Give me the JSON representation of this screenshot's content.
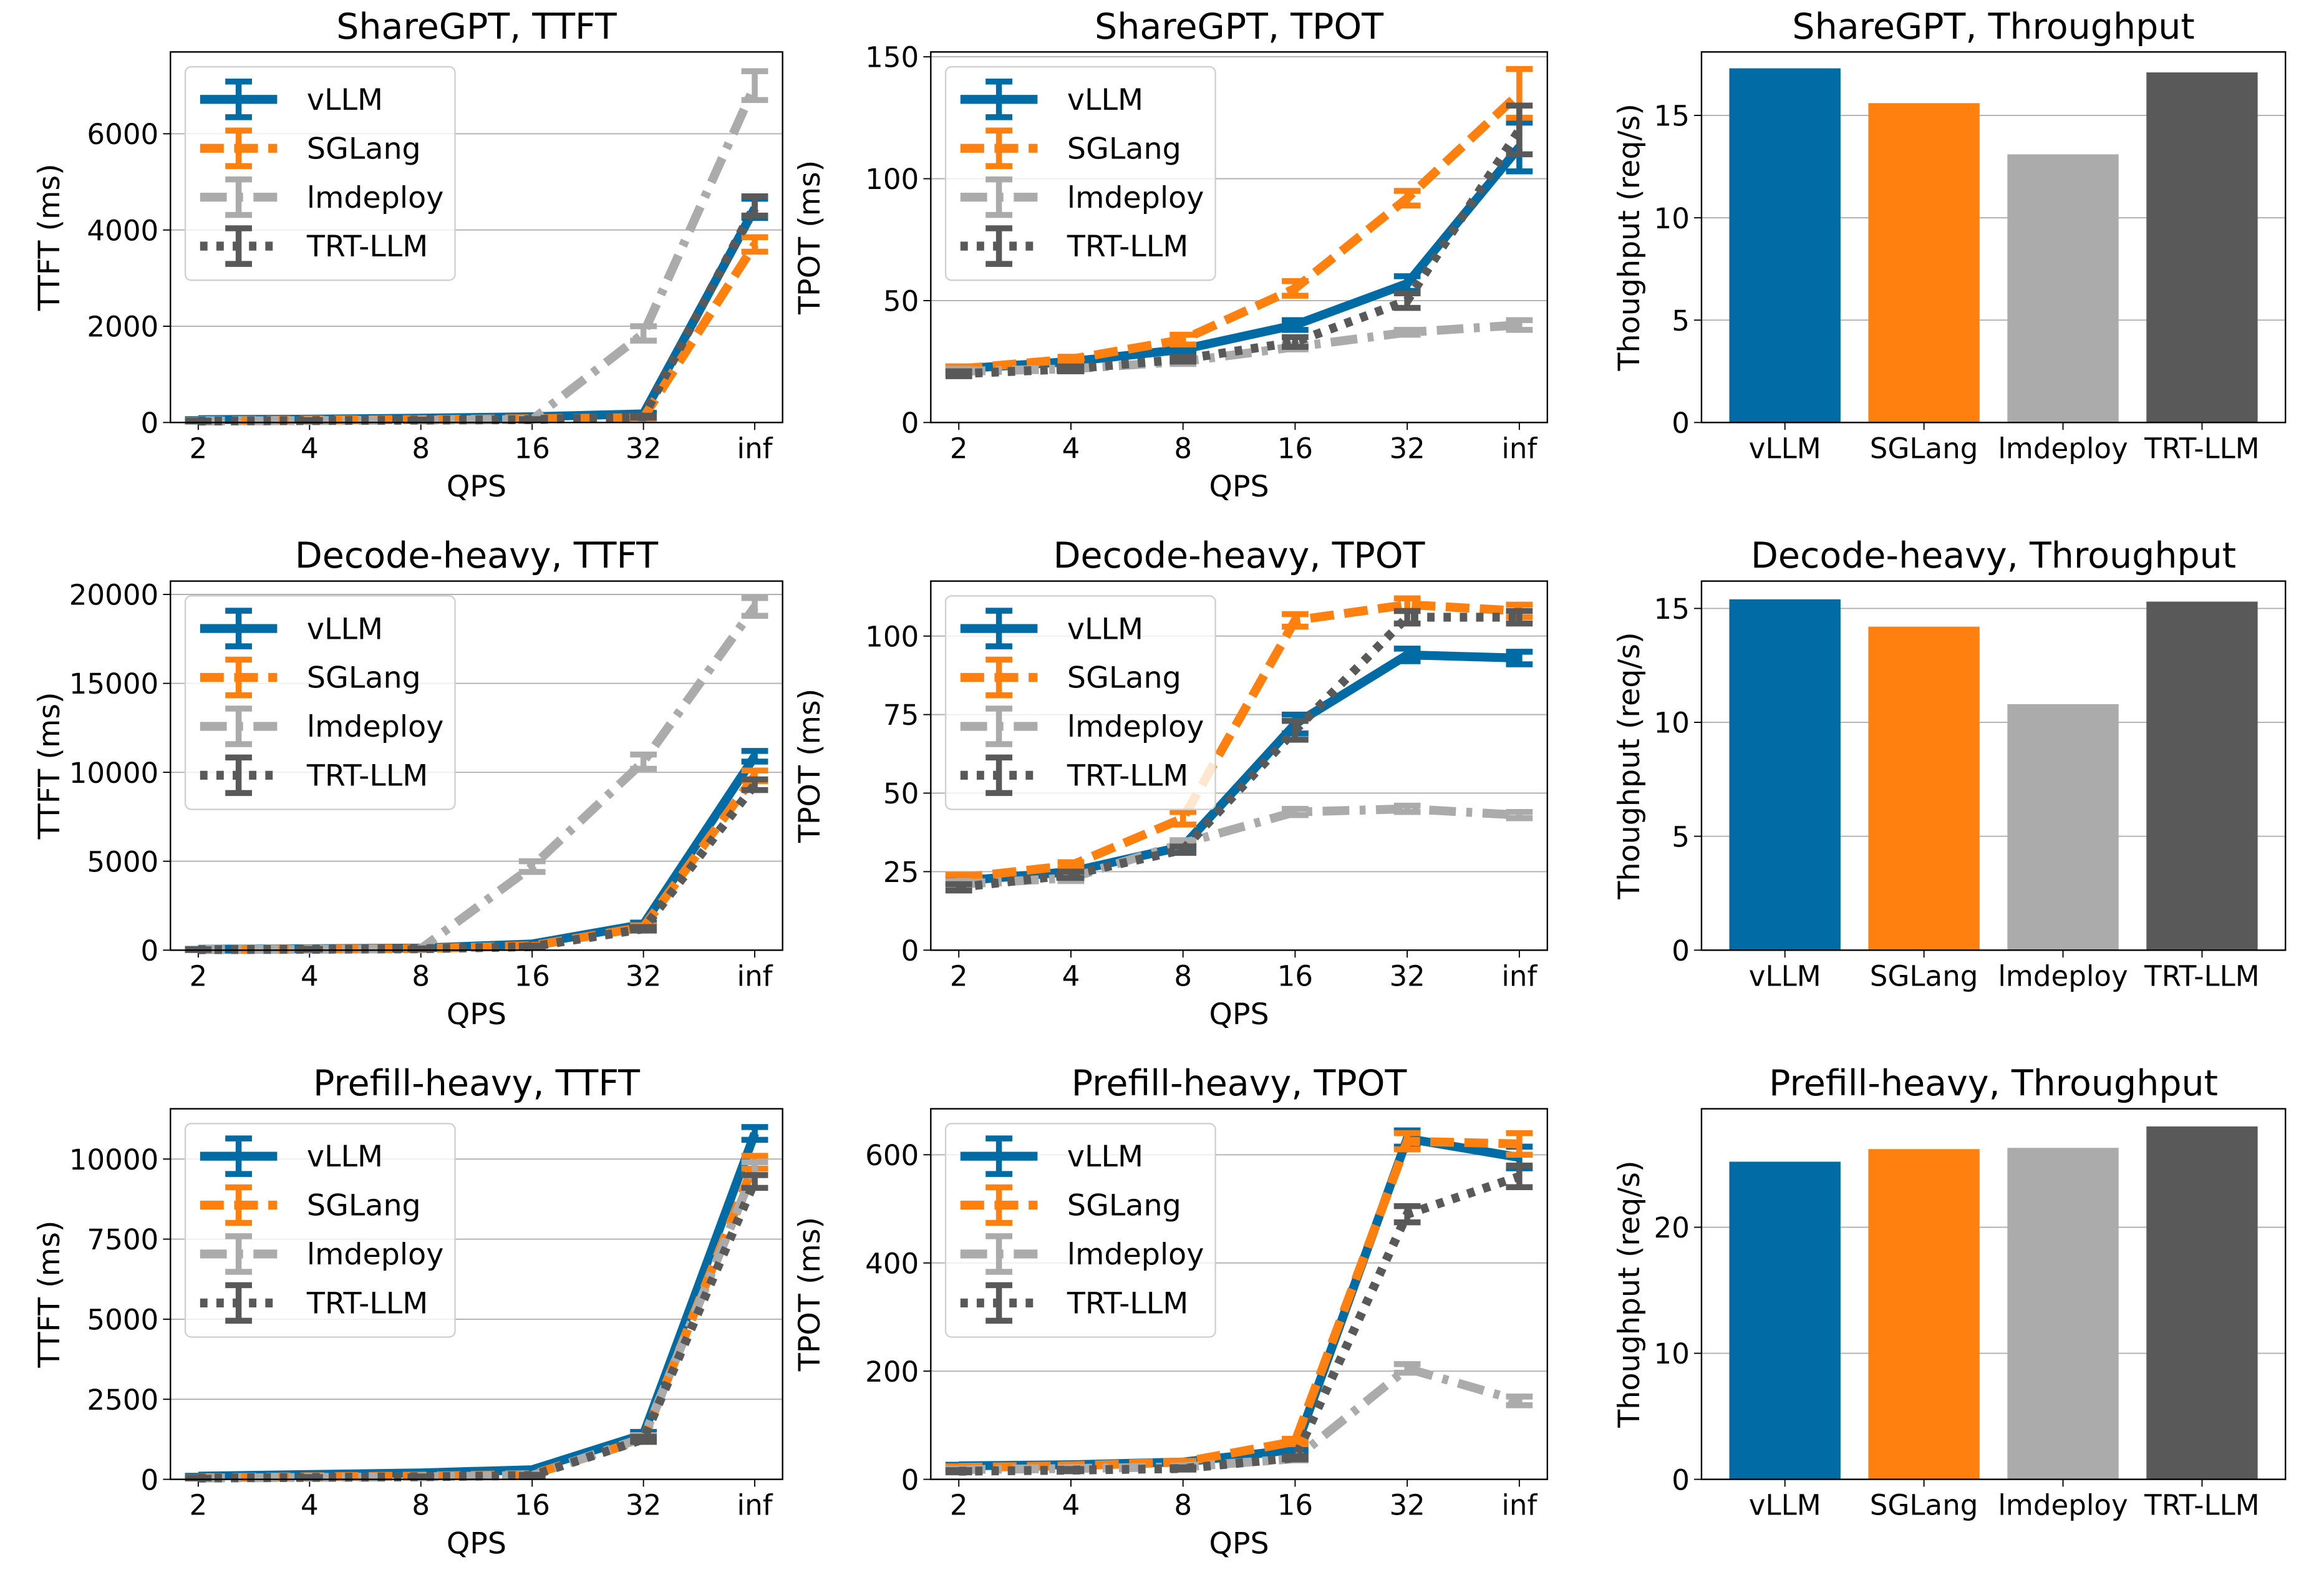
{
  "chart_data": [
    {
      "type": "line",
      "title": "ShareGPT, TTFT",
      "xlabel": "QPS",
      "ylabel": "TTFT (ms)",
      "categories": [
        "2",
        "4",
        "8",
        "16",
        "32",
        "inf"
      ],
      "ylim": [
        0,
        7700
      ],
      "yticks": [
        0,
        2000,
        4000,
        6000
      ],
      "grid": true,
      "legend": "upper left",
      "series": [
        {
          "name": "vLLM",
          "color": "#006ba4",
          "linestyle": "solid",
          "values": [
            60,
            70,
            90,
            120,
            180,
            4450
          ],
          "errors": [
            10,
            10,
            10,
            10,
            20,
            200
          ]
        },
        {
          "name": "SGLang",
          "color": "#ff800e",
          "linestyle": "dashed",
          "values": [
            40,
            50,
            60,
            80,
            100,
            3700
          ],
          "errors": [
            10,
            10,
            10,
            10,
            20,
            150
          ]
        },
        {
          "name": "lmdeploy",
          "color": "#ababab",
          "linestyle": "dashdot",
          "values": [
            30,
            40,
            50,
            60,
            1850,
            7000
          ],
          "errors": [
            10,
            10,
            10,
            10,
            150,
            300
          ]
        },
        {
          "name": "TRT-LLM",
          "color": "#595959",
          "linestyle": "dotted",
          "values": [
            30,
            40,
            50,
            60,
            120,
            4500
          ],
          "errors": [
            10,
            10,
            10,
            10,
            20,
            200
          ]
        }
      ]
    },
    {
      "type": "line",
      "title": "ShareGPT, TPOT",
      "xlabel": "QPS",
      "ylabel": "TPOT (ms)",
      "categories": [
        "2",
        "4",
        "8",
        "16",
        "32",
        "inf"
      ],
      "ylim": [
        0,
        152
      ],
      "yticks": [
        0,
        50,
        100,
        150
      ],
      "grid": true,
      "legend": "upper left",
      "series": [
        {
          "name": "vLLM",
          "color": "#006ba4",
          "linestyle": "solid",
          "values": [
            22,
            25,
            30,
            40,
            57,
            113
          ],
          "errors": [
            1,
            1,
            1,
            2,
            3,
            10
          ]
        },
        {
          "name": "SGLang",
          "color": "#ff800e",
          "linestyle": "dashed",
          "values": [
            22,
            26,
            34,
            55,
            92,
            135
          ],
          "errors": [
            1,
            1,
            2,
            3,
            3,
            10
          ]
        },
        {
          "name": "lmdeploy",
          "color": "#ababab",
          "linestyle": "dashdot",
          "values": [
            21,
            22,
            25,
            31,
            37,
            40
          ],
          "errors": [
            1,
            1,
            1,
            1,
            1,
            2
          ]
        },
        {
          "name": "TRT-LLM",
          "color": "#595959",
          "linestyle": "dotted",
          "values": [
            20,
            22,
            26,
            33,
            50,
            120
          ],
          "errors": [
            1,
            1,
            1,
            2,
            3,
            10
          ]
        }
      ]
    },
    {
      "type": "bar",
      "title": "ShareGPT, Throughput",
      "ylabel": "Thoughput (req/s)",
      "categories": [
        "vLLM",
        "SGLang",
        "lmdeploy",
        "TRT-LLM"
      ],
      "values": [
        17.3,
        15.6,
        13.1,
        17.1
      ],
      "colors": [
        "#006ba4",
        "#ff800e",
        "#ababab",
        "#595959"
      ],
      "ylim": [
        0,
        18.1
      ],
      "yticks": [
        0,
        5,
        10,
        15
      ],
      "grid": true
    },
    {
      "type": "line",
      "title": "Decode-heavy, TTFT",
      "xlabel": "QPS",
      "ylabel": "TTFT (ms)",
      "categories": [
        "2",
        "4",
        "8",
        "16",
        "32",
        "inf"
      ],
      "ylim": [
        0,
        20750
      ],
      "yticks": [
        0,
        5000,
        10000,
        15000,
        20000
      ],
      "grid": true,
      "legend": "upper left",
      "series": [
        {
          "name": "vLLM",
          "color": "#006ba4",
          "linestyle": "solid",
          "values": [
            50,
            80,
            120,
            350,
            1450,
            10900
          ],
          "errors": [
            20,
            20,
            20,
            50,
            100,
            300
          ]
        },
        {
          "name": "SGLang",
          "color": "#ff800e",
          "linestyle": "dashed",
          "values": [
            40,
            60,
            90,
            250,
            1300,
            9800
          ],
          "errors": [
            20,
            20,
            20,
            50,
            100,
            300
          ]
        },
        {
          "name": "lmdeploy",
          "color": "#ababab",
          "linestyle": "dashdot",
          "values": [
            30,
            50,
            80,
            4700,
            10600,
            19300
          ],
          "errors": [
            20,
            20,
            20,
            300,
            400,
            500
          ]
        },
        {
          "name": "TRT-LLM",
          "color": "#595959",
          "linestyle": "dotted",
          "values": [
            30,
            50,
            80,
            200,
            1200,
            9300
          ],
          "errors": [
            20,
            20,
            20,
            50,
            100,
            300
          ]
        }
      ]
    },
    {
      "type": "line",
      "title": "Decode-heavy, TPOT",
      "xlabel": "QPS",
      "ylabel": "TPOT (ms)",
      "categories": [
        "2",
        "4",
        "8",
        "16",
        "32",
        "inf"
      ],
      "ylim": [
        0,
        117.5
      ],
      "yticks": [
        0,
        25,
        50,
        75,
        100
      ],
      "grid": true,
      "legend": "upper left",
      "series": [
        {
          "name": "vLLM",
          "color": "#006ba4",
          "linestyle": "solid",
          "values": [
            22,
            25,
            33,
            72,
            94,
            93
          ],
          "errors": [
            1,
            1,
            1,
            3,
            2,
            2
          ]
        },
        {
          "name": "SGLang",
          "color": "#ff800e",
          "linestyle": "dashed",
          "values": [
            23,
            27,
            42,
            105,
            110,
            108
          ],
          "errors": [
            1,
            1,
            2,
            2,
            2,
            2
          ]
        },
        {
          "name": "lmdeploy",
          "color": "#ababab",
          "linestyle": "dashdot",
          "values": [
            21,
            23,
            34,
            44,
            45,
            43
          ],
          "errors": [
            1,
            1,
            1,
            1,
            1,
            1
          ]
        },
        {
          "name": "TRT-LLM",
          "color": "#595959",
          "linestyle": "dotted",
          "values": [
            20,
            24,
            32,
            70,
            106,
            106
          ],
          "errors": [
            1,
            1,
            1,
            3,
            2,
            2
          ]
        }
      ]
    },
    {
      "type": "bar",
      "title": "Decode-heavy, Throughput",
      "ylabel": "Thoughput (req/s)",
      "categories": [
        "vLLM",
        "SGLang",
        "lmdeploy",
        "TRT-LLM"
      ],
      "values": [
        15.4,
        14.2,
        10.8,
        15.3
      ],
      "colors": [
        "#006ba4",
        "#ff800e",
        "#ababab",
        "#595959"
      ],
      "ylim": [
        0,
        16.2
      ],
      "yticks": [
        0,
        5,
        10,
        15
      ],
      "grid": true
    },
    {
      "type": "line",
      "title": "Prefill-heavy, TTFT",
      "xlabel": "QPS",
      "ylabel": "TTFT (ms)",
      "categories": [
        "2",
        "4",
        "8",
        "16",
        "32",
        "inf"
      ],
      "ylim": [
        0,
        11570
      ],
      "yticks": [
        0,
        2500,
        5000,
        7500,
        10000
      ],
      "grid": true,
      "legend": "upper left",
      "series": [
        {
          "name": "vLLM",
          "color": "#006ba4",
          "linestyle": "solid",
          "values": [
            100,
            150,
            200,
            300,
            1400,
            10800
          ],
          "errors": [
            10,
            10,
            10,
            20,
            80,
            200
          ]
        },
        {
          "name": "SGLang",
          "color": "#ff800e",
          "linestyle": "dashed",
          "values": [
            50,
            80,
            100,
            150,
            1250,
            9900
          ],
          "errors": [
            10,
            10,
            10,
            20,
            80,
            200
          ]
        },
        {
          "name": "lmdeploy",
          "color": "#ababab",
          "linestyle": "dashdot",
          "values": [
            40,
            60,
            80,
            120,
            1300,
            9700
          ],
          "errors": [
            10,
            10,
            10,
            20,
            80,
            200
          ]
        },
        {
          "name": "TRT-LLM",
          "color": "#595959",
          "linestyle": "dotted",
          "values": [
            40,
            60,
            80,
            120,
            1250,
            9300
          ],
          "errors": [
            10,
            10,
            10,
            20,
            80,
            200
          ]
        }
      ]
    },
    {
      "type": "line",
      "title": "Prefill-heavy, TPOT",
      "xlabel": "QPS",
      "ylabel": "TPOT (ms)",
      "categories": [
        "2",
        "4",
        "8",
        "16",
        "32",
        "inf"
      ],
      "ylim": [
        0,
        685
      ],
      "yticks": [
        0,
        200,
        400,
        600
      ],
      "grid": true,
      "legend": "upper left",
      "series": [
        {
          "name": "vLLM",
          "color": "#006ba4",
          "linestyle": "solid",
          "values": [
            25,
            27,
            32,
            55,
            630,
            595
          ],
          "errors": [
            2,
            2,
            2,
            5,
            15,
            20
          ]
        },
        {
          "name": "SGLang",
          "color": "#ff800e",
          "linestyle": "dashed",
          "values": [
            22,
            25,
            32,
            70,
            625,
            620
          ],
          "errors": [
            2,
            2,
            2,
            5,
            15,
            20
          ]
        },
        {
          "name": "lmdeploy",
          "color": "#ababab",
          "linestyle": "dashdot",
          "values": [
            18,
            20,
            23,
            38,
            205,
            145
          ],
          "errors": [
            2,
            2,
            2,
            3,
            8,
            8
          ]
        },
        {
          "name": "TRT-LLM",
          "color": "#595959",
          "linestyle": "dotted",
          "values": [
            15,
            17,
            20,
            40,
            490,
            560
          ],
          "errors": [
            2,
            2,
            2,
            3,
            15,
            20
          ]
        }
      ]
    },
    {
      "type": "bar",
      "title": "Prefill-heavy, Throughput",
      "ylabel": "Thoughput (req/s)",
      "categories": [
        "vLLM",
        "SGLang",
        "lmdeploy",
        "TRT-LLM"
      ],
      "values": [
        25.2,
        26.2,
        26.3,
        28.0
      ],
      "colors": [
        "#006ba4",
        "#ff800e",
        "#ababab",
        "#595959"
      ],
      "ylim": [
        0,
        29.4
      ],
      "yticks": [
        0,
        10,
        20
      ],
      "grid": true
    }
  ]
}
